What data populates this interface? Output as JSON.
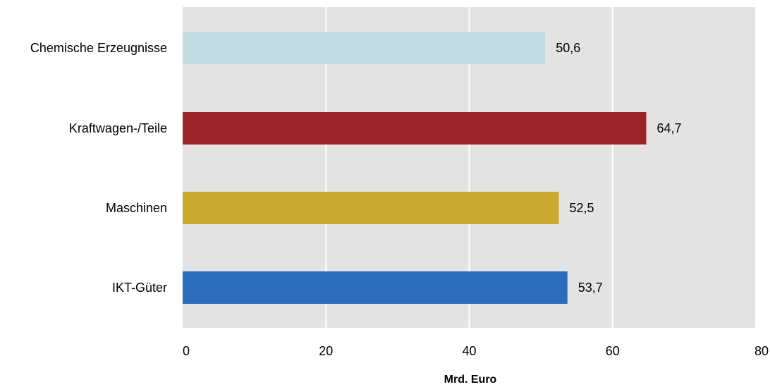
{
  "chart_data": {
    "type": "bar",
    "orientation": "horizontal",
    "categories": [
      "Chemische Erzeugnisse",
      "Kraftwagen-/Teile",
      "Maschinen",
      "IKT-Güter"
    ],
    "values": [
      50.6,
      64.7,
      52.5,
      53.7
    ],
    "value_labels": [
      "50,6",
      "64,7",
      "52,5",
      "53,7"
    ],
    "colors": [
      "#c1dce0",
      "#9c2328",
      "#c9a930",
      "#2b6cbb"
    ],
    "xlim": [
      0,
      80
    ],
    "xticks": [
      0,
      20,
      40,
      60,
      80
    ],
    "xtick_labels": [
      "0",
      "20",
      "40",
      "60",
      "80"
    ],
    "xlabel": "Mrd. Euro",
    "grid": true,
    "plot_background": "#e3e3e3",
    "grid_color": "#ffffff"
  }
}
